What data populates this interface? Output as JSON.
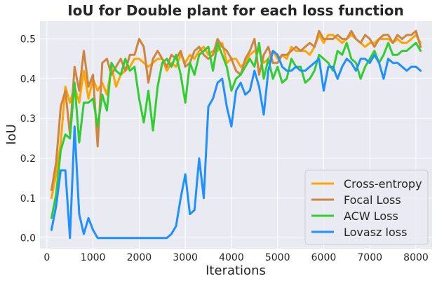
{
  "chart_data": {
    "type": "line",
    "title": "IoU for Double plant for each loss function",
    "xlabel": "Iterations",
    "ylabel": "IoU",
    "xlim": [
      -150,
      8350
    ],
    "ylim": [
      -0.027,
      0.545
    ],
    "xticks": [
      0,
      1000,
      2000,
      3000,
      4000,
      5000,
      6000,
      7000,
      8000
    ],
    "yticks": [
      0.0,
      0.1,
      0.2,
      0.3,
      0.4,
      0.5
    ],
    "grid": true,
    "legend_position": "lower-right",
    "x": [
      100,
      200,
      300,
      400,
      500,
      600,
      700,
      800,
      900,
      1000,
      1100,
      1200,
      1300,
      1400,
      1500,
      1600,
      1700,
      1800,
      1900,
      2000,
      2100,
      2200,
      2300,
      2400,
      2500,
      2600,
      2700,
      2800,
      2900,
      3000,
      3100,
      3200,
      3300,
      3400,
      3500,
      3600,
      3700,
      3800,
      3900,
      4000,
      4100,
      4200,
      4300,
      4400,
      4500,
      4600,
      4700,
      4800,
      4900,
      5000,
      5100,
      5200,
      5300,
      5400,
      5500,
      5600,
      5700,
      5800,
      5900,
      6000,
      6100,
      6200,
      6300,
      6400,
      6500,
      6600,
      6700,
      6800,
      6900,
      7000,
      7100,
      7200,
      7300,
      7400,
      7500,
      7600,
      7700,
      7800,
      7900,
      8000,
      8100
    ],
    "series": [
      {
        "name": "Cross-entropy",
        "color": "#FFA500",
        "values": [
          0.1,
          0.16,
          0.24,
          0.38,
          0.34,
          0.38,
          0.34,
          0.42,
          0.35,
          0.4,
          0.37,
          0.39,
          0.36,
          0.43,
          0.38,
          0.41,
          0.42,
          0.43,
          0.45,
          0.45,
          0.44,
          0.43,
          0.44,
          0.45,
          0.45,
          0.42,
          0.44,
          0.43,
          0.46,
          0.44,
          0.46,
          0.45,
          0.47,
          0.48,
          0.46,
          0.47,
          0.47,
          0.49,
          0.44,
          0.45,
          0.45,
          0.43,
          0.44,
          0.46,
          0.47,
          0.47,
          0.44,
          0.45,
          0.47,
          0.45,
          0.46,
          0.45,
          0.48,
          0.47,
          0.47,
          0.47,
          0.46,
          0.48,
          0.51,
          0.49,
          0.51,
          0.51,
          0.5,
          0.49,
          0.5,
          0.51,
          0.5,
          0.49,
          0.48,
          0.49,
          0.49,
          0.5,
          0.5,
          0.5,
          0.49,
          0.5,
          0.49,
          0.49,
          0.5,
          0.51,
          0.49
        ]
      },
      {
        "name": "Focal Loss",
        "color": "#CD853F",
        "values": [
          0.12,
          0.19,
          0.33,
          0.37,
          0.26,
          0.43,
          0.37,
          0.47,
          0.38,
          0.41,
          0.23,
          0.44,
          0.45,
          0.41,
          0.43,
          0.45,
          0.42,
          0.46,
          0.46,
          0.5,
          0.48,
          0.39,
          0.45,
          0.47,
          0.45,
          0.43,
          0.46,
          0.45,
          0.47,
          0.43,
          0.44,
          0.47,
          0.48,
          0.46,
          0.45,
          0.46,
          0.5,
          0.48,
          0.47,
          0.45,
          0.42,
          0.41,
          0.45,
          0.47,
          0.5,
          0.41,
          0.46,
          0.48,
          0.44,
          0.44,
          0.46,
          0.46,
          0.47,
          0.48,
          0.47,
          0.48,
          0.49,
          0.48,
          0.52,
          0.5,
          0.5,
          0.5,
          0.51,
          0.5,
          0.5,
          0.52,
          0.5,
          0.49,
          0.51,
          0.5,
          0.48,
          0.5,
          0.51,
          0.51,
          0.49,
          0.51,
          0.5,
          0.51,
          0.51,
          0.52,
          0.48
        ]
      },
      {
        "name": "ACW Loss",
        "color": "#32CD32",
        "values": [
          0.05,
          0.11,
          0.22,
          0.26,
          0.25,
          0.39,
          0.24,
          0.34,
          0.34,
          0.35,
          0.28,
          0.36,
          0.32,
          0.44,
          0.42,
          0.41,
          0.45,
          0.42,
          0.43,
          0.35,
          0.29,
          0.37,
          0.27,
          0.38,
          0.44,
          0.45,
          0.43,
          0.46,
          0.41,
          0.34,
          0.44,
          0.41,
          0.46,
          0.47,
          0.48,
          0.42,
          0.49,
          0.46,
          0.43,
          0.37,
          0.4,
          0.41,
          0.43,
          0.45,
          0.43,
          0.49,
          0.4,
          0.45,
          0.4,
          0.43,
          0.39,
          0.4,
          0.45,
          0.43,
          0.43,
          0.39,
          0.4,
          0.42,
          0.46,
          0.45,
          0.44,
          0.42,
          0.47,
          0.46,
          0.49,
          0.45,
          0.44,
          0.4,
          0.43,
          0.45,
          0.47,
          0.44,
          0.46,
          0.49,
          0.46,
          0.46,
          0.47,
          0.47,
          0.48,
          0.49,
          0.47
        ]
      },
      {
        "name": "Lovasz loss",
        "color": "#1E90FF",
        "values": [
          0.02,
          0.08,
          0.17,
          0.17,
          0.0,
          0.28,
          0.06,
          0.01,
          0.05,
          0.02,
          0.0,
          0.0,
          0.0,
          0.0,
          0.0,
          0.0,
          0.0,
          0.0,
          0.0,
          0.0,
          0.0,
          0.0,
          0.0,
          0.0,
          0.0,
          0.0,
          0.01,
          0.03,
          0.1,
          0.16,
          0.06,
          0.07,
          0.2,
          0.1,
          0.33,
          0.35,
          0.39,
          0.4,
          0.33,
          0.28,
          0.37,
          0.39,
          0.36,
          0.37,
          0.42,
          0.38,
          0.31,
          0.42,
          0.47,
          0.46,
          0.43,
          0.42,
          0.42,
          0.43,
          0.42,
          0.42,
          0.43,
          0.44,
          0.45,
          0.37,
          0.43,
          0.43,
          0.4,
          0.43,
          0.45,
          0.44,
          0.42,
          0.45,
          0.45,
          0.44,
          0.46,
          0.44,
          0.4,
          0.45,
          0.44,
          0.44,
          0.43,
          0.42,
          0.43,
          0.43,
          0.42
        ]
      }
    ]
  }
}
